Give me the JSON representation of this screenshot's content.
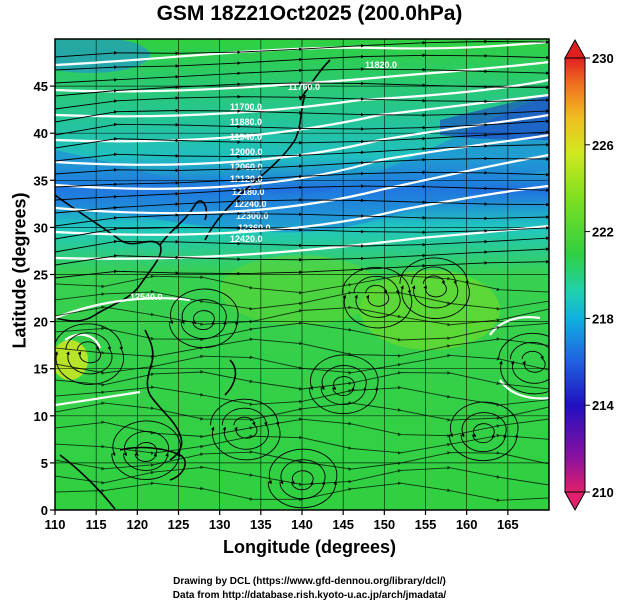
{
  "title": "GSM 18Z21Oct2025 (200.0hPa)",
  "xlabel": "Longitude (degrees)",
  "ylabel": "Latitude  (degrees)",
  "credits": [
    "Drawing by DCL (https://www.gfd-dennou.org/library/dcl/)",
    "Data from http://database.rish.kyoto-u.ac.jp/arch/jmadata/"
  ],
  "map": {
    "lon_range": [
      110,
      170
    ],
    "lat_range": [
      0,
      50
    ],
    "x_ticks": [
      "110",
      "115",
      "120",
      "125",
      "130",
      "135",
      "140",
      "145",
      "150",
      "155",
      "160",
      "165"
    ],
    "y_ticks": [
      "0",
      "5",
      "10",
      "15",
      "20",
      "25",
      "30",
      "35",
      "40",
      "45"
    ],
    "field": "temperature (shaded) with geopotential height contours and streamlines"
  },
  "colorbar": {
    "ticks": [
      "230",
      "226",
      "222",
      "218",
      "214",
      "210"
    ],
    "colors": [
      "#e0206a",
      "#8b10a0",
      "#2010c0",
      "#2060e0",
      "#10b0e0",
      "#20d0b0",
      "#30d040",
      "#80e020",
      "#d0e820",
      "#f0c020",
      "#f07020",
      "#e02020"
    ]
  },
  "contour_labels": [
    "11820.0",
    "11700.0",
    "11760.0",
    "11880.0",
    "11940.0",
    "12000.0",
    "12060.0",
    "12120.0",
    "12180.0",
    "12240.0",
    "12300.0",
    "12360.0",
    "12420.0",
    "12540.0"
  ]
}
